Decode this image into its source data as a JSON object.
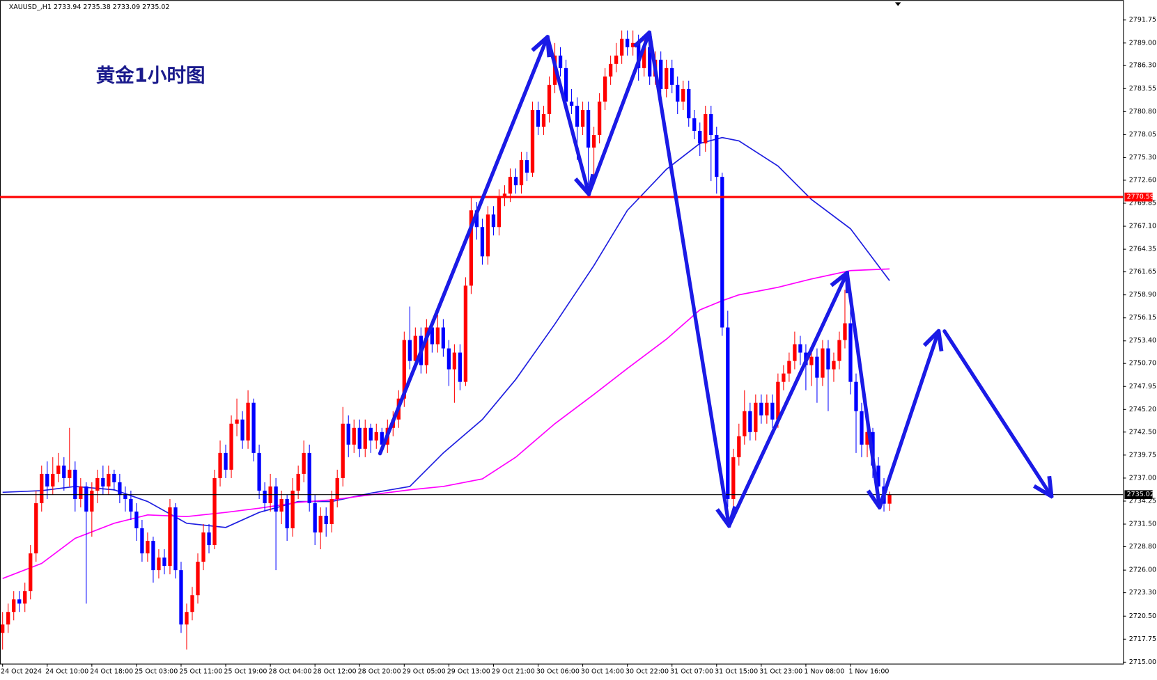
{
  "chart_data": {
    "type": "candlestick",
    "header": "XAUUSD_,H1  2733.94 2735.38 2733.09 2735.02",
    "annotation": "黄金1小时图",
    "up_color": "#ff0000",
    "down_color": "#0000ff",
    "categories": [
      "24 Oct 2024",
      null,
      null,
      null,
      null,
      null,
      null,
      null,
      "24 Oct 10:00",
      null,
      null,
      null,
      null,
      null,
      null,
      null,
      "24 Oct 18:00",
      null,
      null,
      null,
      null,
      null,
      null,
      null,
      "25 Oct 03:00",
      null,
      null,
      null,
      null,
      null,
      null,
      null,
      "25 Oct 11:00",
      null,
      null,
      null,
      null,
      null,
      null,
      null,
      "25 Oct 19:00",
      null,
      null,
      null,
      null,
      null,
      null,
      null,
      "28 Oct 04:00",
      null,
      null,
      null,
      null,
      null,
      null,
      null,
      "28 Oct 12:00",
      null,
      null,
      null,
      null,
      null,
      null,
      null,
      "28 Oct 20:00",
      null,
      null,
      null,
      null,
      null,
      null,
      null,
      "29 Oct 05:00",
      null,
      null,
      null,
      null,
      null,
      null,
      null,
      "29 Oct 13:00",
      null,
      null,
      null,
      null,
      null,
      null,
      null,
      "29 Oct 21:00",
      null,
      null,
      null,
      null,
      null,
      null,
      null,
      "30 Oct 06:00",
      null,
      null,
      null,
      null,
      null,
      null,
      null,
      "30 Oct 14:00",
      null,
      null,
      null,
      null,
      null,
      null,
      null,
      "30 Oct 22:00",
      null,
      null,
      null,
      null,
      null,
      null,
      null,
      "31 Oct 07:00",
      null,
      null,
      null,
      null,
      null,
      null,
      null,
      "31 Oct 15:00",
      null,
      null,
      null,
      null,
      null,
      null,
      null,
      "31 Oct 23:00",
      null,
      null,
      null,
      null,
      null,
      null,
      null,
      "1 Nov 08:00",
      null,
      null,
      null,
      null,
      null,
      null,
      null,
      "1 Nov 16:00",
      null,
      null,
      null,
      null,
      null,
      null,
      null
    ],
    "ohlc": [
      [
        2718.5,
        2721.0,
        2716.5,
        2719.5
      ],
      [
        2719.5,
        2722.0,
        2718.5,
        2721.0
      ],
      [
        2721.0,
        2723.5,
        2720.0,
        2722.5
      ],
      [
        2722.5,
        2723.5,
        2721.0,
        2722.0
      ],
      [
        2722.0,
        2724.5,
        2721.0,
        2723.5
      ],
      [
        2723.5,
        2729.0,
        2722.5,
        2728.0
      ],
      [
        2728.0,
        2735.5,
        2727.0,
        2734.0
      ],
      [
        2734.0,
        2738.5,
        2733.0,
        2737.5
      ],
      [
        2737.5,
        2739.0,
        2734.5,
        2736.0
      ],
      [
        2736.0,
        2739.5,
        2735.0,
        2737.5
      ],
      [
        2737.5,
        2740.0,
        2736.5,
        2738.5
      ],
      [
        2738.5,
        2739.5,
        2735.5,
        2737.0
      ],
      [
        2737.0,
        2743.0,
        2736.0,
        2738.0
      ],
      [
        2738.0,
        2739.0,
        2733.0,
        2734.5
      ],
      [
        2734.5,
        2737.0,
        2733.5,
        2736.0
      ],
      [
        2736.0,
        2736.5,
        2722.0,
        2733.0
      ],
      [
        2733.0,
        2736.5,
        2730.0,
        2735.5
      ],
      [
        2735.5,
        2738.0,
        2734.0,
        2737.0
      ],
      [
        2737.0,
        2738.5,
        2735.0,
        2736.0
      ],
      [
        2736.0,
        2738.5,
        2735.0,
        2737.5
      ],
      [
        2737.5,
        2738.0,
        2735.5,
        2736.5
      ],
      [
        2736.5,
        2737.5,
        2734.0,
        2735.0
      ],
      [
        2735.0,
        2736.0,
        2733.0,
        2734.5
      ],
      [
        2734.5,
        2735.5,
        2732.0,
        2733.0
      ],
      [
        2733.0,
        2734.0,
        2729.5,
        2731.0
      ],
      [
        2731.0,
        2732.0,
        2727.0,
        2728.0
      ],
      [
        2728.0,
        2730.5,
        2727.0,
        2729.5
      ],
      [
        2729.5,
        2730.0,
        2724.5,
        2726.0
      ],
      [
        2726.0,
        2728.5,
        2725.0,
        2727.5
      ],
      [
        2727.5,
        2728.5,
        2725.5,
        2726.5
      ],
      [
        2726.5,
        2734.5,
        2725.5,
        2733.5
      ],
      [
        2733.5,
        2734.0,
        2725.0,
        2726.0
      ],
      [
        2726.0,
        2727.0,
        2718.5,
        2719.5
      ],
      [
        2719.5,
        2722.0,
        2716.5,
        2721.0
      ],
      [
        2721.0,
        2724.0,
        2720.0,
        2723.0
      ],
      [
        2723.0,
        2728.0,
        2722.0,
        2727.0
      ],
      [
        2727.0,
        2731.5,
        2726.0,
        2730.5
      ],
      [
        2730.5,
        2731.5,
        2728.0,
        2729.0
      ],
      [
        2729.0,
        2738.0,
        2728.5,
        2737.0
      ],
      [
        2737.0,
        2741.5,
        2736.0,
        2740.0
      ],
      [
        2740.0,
        2741.0,
        2737.0,
        2738.0
      ],
      [
        2738.0,
        2744.5,
        2737.0,
        2743.5
      ],
      [
        2743.5,
        2746.5,
        2742.0,
        2744.0
      ],
      [
        2744.0,
        2745.0,
        2740.5,
        2741.5
      ],
      [
        2741.5,
        2747.5,
        2740.5,
        2746.0
      ],
      [
        2746.0,
        2746.5,
        2739.0,
        2740.0
      ],
      [
        2740.0,
        2741.0,
        2734.5,
        2735.5
      ],
      [
        2735.5,
        2736.5,
        2733.0,
        2734.0
      ],
      [
        2734.0,
        2737.5,
        2733.0,
        2736.0
      ],
      [
        2736.0,
        2737.0,
        2726.0,
        2733.0
      ],
      [
        2733.0,
        2735.5,
        2731.5,
        2734.5
      ],
      [
        2734.5,
        2735.0,
        2729.5,
        2731.0
      ],
      [
        2731.0,
        2737.0,
        2730.0,
        2735.5
      ],
      [
        2735.5,
        2738.5,
        2734.5,
        2737.5
      ],
      [
        2737.5,
        2741.5,
        2736.5,
        2740.0
      ],
      [
        2740.0,
        2741.0,
        2733.0,
        2734.0
      ],
      [
        2734.0,
        2735.0,
        2729.0,
        2730.5
      ],
      [
        2730.5,
        2733.5,
        2728.5,
        2732.5
      ],
      [
        2732.5,
        2733.5,
        2730.0,
        2731.5
      ],
      [
        2731.5,
        2735.5,
        2730.5,
        2734.5
      ],
      [
        2734.5,
        2738.0,
        2733.5,
        2737.0
      ],
      [
        2737.0,
        2745.5,
        2736.0,
        2743.5
      ],
      [
        2743.5,
        2744.5,
        2739.5,
        2741.0
      ],
      [
        2741.0,
        2744.0,
        2740.0,
        2743.0
      ],
      [
        2743.0,
        2744.0,
        2739.5,
        2740.5
      ],
      [
        2740.5,
        2744.0,
        2739.5,
        2743.0
      ],
      [
        2743.0,
        2743.5,
        2740.0,
        2741.5
      ],
      [
        2741.5,
        2743.5,
        2740.5,
        2742.5
      ],
      [
        2742.5,
        2743.0,
        2740.0,
        2741.0
      ],
      [
        2741.0,
        2744.0,
        2740.0,
        2743.0
      ],
      [
        2743.0,
        2745.0,
        2742.0,
        2744.0
      ],
      [
        2744.0,
        2747.5,
        2743.0,
        2746.5
      ],
      [
        2746.5,
        2754.5,
        2745.5,
        2753.5
      ],
      [
        2753.5,
        2757.5,
        2750.0,
        2751.0
      ],
      [
        2751.0,
        2755.0,
        2750.0,
        2754.0
      ],
      [
        2754.0,
        2755.0,
        2749.5,
        2750.5
      ],
      [
        2750.5,
        2756.0,
        2749.5,
        2755.0
      ],
      [
        2755.0,
        2756.0,
        2752.0,
        2753.0
      ],
      [
        2753.0,
        2756.5,
        2752.0,
        2755.0
      ],
      [
        2755.0,
        2756.0,
        2751.5,
        2752.5
      ],
      [
        2752.5,
        2753.5,
        2748.0,
        2750.0
      ],
      [
        2750.0,
        2753.0,
        2746.0,
        2752.0
      ],
      [
        2752.0,
        2753.0,
        2747.5,
        2748.5
      ],
      [
        2748.5,
        2761.0,
        2748.0,
        2760.0
      ],
      [
        2760.0,
        2770.5,
        2759.0,
        2769.0
      ],
      [
        2769.0,
        2770.0,
        2765.5,
        2767.0
      ],
      [
        2767.0,
        2768.0,
        2762.5,
        2763.5
      ],
      [
        2763.5,
        2769.5,
        2762.5,
        2768.5
      ],
      [
        2768.5,
        2769.5,
        2766.0,
        2767.0
      ],
      [
        2767.0,
        2771.5,
        2766.0,
        2770.5
      ],
      [
        2770.5,
        2772.0,
        2769.5,
        2771.0
      ],
      [
        2771.0,
        2774.0,
        2770.0,
        2773.0
      ],
      [
        2773.0,
        2774.0,
        2771.0,
        2772.0
      ],
      [
        2772.0,
        2776.0,
        2771.0,
        2775.0
      ],
      [
        2775.0,
        2776.0,
        2772.5,
        2773.5
      ],
      [
        2773.5,
        2782.0,
        2773.0,
        2781.0
      ],
      [
        2781.0,
        2782.0,
        2778.0,
        2779.0
      ],
      [
        2779.0,
        2781.5,
        2778.0,
        2780.5
      ],
      [
        2780.5,
        2785.0,
        2779.5,
        2784.0
      ],
      [
        2784.0,
        2789.0,
        2783.0,
        2787.5
      ],
      [
        2787.5,
        2788.5,
        2785.0,
        2786.0
      ],
      [
        2786.0,
        2787.0,
        2781.0,
        2782.0
      ],
      [
        2782.0,
        2783.5,
        2780.5,
        2781.5
      ],
      [
        2781.5,
        2782.5,
        2775.0,
        2779.0
      ],
      [
        2779.0,
        2782.0,
        2778.0,
        2781.0
      ],
      [
        2781.0,
        2782.0,
        2772.0,
        2776.5
      ],
      [
        2776.5,
        2779.0,
        2772.0,
        2778.0
      ],
      [
        2778.0,
        2783.0,
        2777.0,
        2782.0
      ],
      [
        2782.0,
        2786.0,
        2781.0,
        2785.0
      ],
      [
        2785.0,
        2787.5,
        2784.0,
        2786.5
      ],
      [
        2786.5,
        2789.0,
        2785.5,
        2787.5
      ],
      [
        2787.5,
        2790.5,
        2786.5,
        2789.5
      ],
      [
        2789.5,
        2790.5,
        2787.5,
        2788.5
      ],
      [
        2788.5,
        2790.5,
        2787.5,
        2789.0
      ],
      [
        2789.0,
        2790.0,
        2784.5,
        2786.0
      ],
      [
        2786.0,
        2789.5,
        2785.0,
        2788.5
      ],
      [
        2788.5,
        2789.5,
        2784.0,
        2785.0
      ],
      [
        2785.0,
        2788.0,
        2784.0,
        2787.0
      ],
      [
        2787.0,
        2788.0,
        2782.0,
        2783.5
      ],
      [
        2783.5,
        2787.0,
        2782.5,
        2786.0
      ],
      [
        2786.0,
        2787.0,
        2783.0,
        2784.0
      ],
      [
        2784.0,
        2785.0,
        2780.5,
        2782.0
      ],
      [
        2782.0,
        2784.5,
        2781.0,
        2783.5
      ],
      [
        2783.5,
        2784.5,
        2779.0,
        2780.0
      ],
      [
        2780.0,
        2781.0,
        2777.5,
        2778.5
      ],
      [
        2778.5,
        2779.5,
        2775.5,
        2777.0
      ],
      [
        2777.0,
        2781.5,
        2776.0,
        2780.5
      ],
      [
        2780.5,
        2781.5,
        2772.5,
        2778.0
      ],
      [
        2778.0,
        2779.0,
        2771.0,
        2773.0
      ],
      [
        2773.0,
        2773.5,
        2754.0,
        2755.0
      ],
      [
        2755.0,
        2757.0,
        2733.5,
        2734.5
      ],
      [
        2734.5,
        2740.5,
        2733.0,
        2739.5
      ],
      [
        2739.5,
        2743.5,
        2738.5,
        2742.0
      ],
      [
        2742.0,
        2747.5,
        2741.0,
        2745.0
      ],
      [
        2745.0,
        2746.0,
        2741.5,
        2742.5
      ],
      [
        2742.5,
        2747.0,
        2741.5,
        2746.0
      ],
      [
        2746.0,
        2747.0,
        2743.5,
        2744.5
      ],
      [
        2744.5,
        2747.0,
        2743.5,
        2746.0
      ],
      [
        2746.0,
        2747.0,
        2743.0,
        2744.0
      ],
      [
        2744.0,
        2749.5,
        2743.0,
        2748.5
      ],
      [
        2748.5,
        2750.5,
        2747.5,
        2749.5
      ],
      [
        2749.5,
        2752.0,
        2748.5,
        2751.0
      ],
      [
        2751.0,
        2754.5,
        2750.0,
        2753.0
      ],
      [
        2753.0,
        2754.0,
        2750.5,
        2752.0
      ],
      [
        2752.0,
        2753.0,
        2747.5,
        2750.5
      ],
      [
        2750.5,
        2752.5,
        2748.0,
        2751.5
      ],
      [
        2751.5,
        2752.5,
        2746.0,
        2749.0
      ],
      [
        2749.0,
        2753.5,
        2748.0,
        2752.5
      ],
      [
        2752.5,
        2753.5,
        2745.0,
        2750.0
      ],
      [
        2750.0,
        2752.0,
        2748.5,
        2751.0
      ],
      [
        2751.0,
        2754.5,
        2750.0,
        2753.5
      ],
      [
        2753.5,
        2759.5,
        2752.5,
        2755.5
      ],
      [
        2755.5,
        2758.0,
        2747.0,
        2748.5
      ],
      [
        2748.5,
        2749.5,
        2740.0,
        2745.0
      ],
      [
        2745.0,
        2746.0,
        2739.5,
        2741.0
      ],
      [
        2741.0,
        2743.5,
        2739.5,
        2742.5
      ],
      [
        2742.5,
        2743.0,
        2737.0,
        2738.5
      ],
      [
        2738.5,
        2739.5,
        2734.0,
        2736.0
      ],
      [
        2736.0,
        2737.0,
        2733.0,
        2733.94
      ],
      [
        2733.94,
        2735.38,
        2733.09,
        2735.02
      ]
    ],
    "lines": [
      {
        "color": "#1f1fe0",
        "x": [
          0,
          7,
          13,
          20,
          26,
          33,
          40,
          46,
          53,
          59,
          66,
          73,
          79,
          86,
          92,
          99,
          106,
          112,
          119,
          125,
          129,
          132,
          139,
          145,
          152,
          159
        ],
        "values": [
          2735.3,
          2735.5,
          2736.0,
          2735.6,
          2734.2,
          2731.6,
          2731.1,
          2732.9,
          2734.2,
          2734.2,
          2735.2,
          2736.0,
          2740.0,
          2744.0,
          2748.8,
          2755.4,
          2762.4,
          2769.0,
          2773.9,
          2777.0,
          2777.7,
          2777.3,
          2774.3,
          2770.3,
          2766.8,
          2760.6
        ]
      },
      {
        "color": "#ff00ff",
        "x": [
          0,
          7,
          13,
          20,
          26,
          33,
          40,
          46,
          53,
          59,
          66,
          73,
          79,
          86,
          92,
          99,
          106,
          112,
          119,
          125,
          129,
          132,
          139,
          145,
          152,
          159
        ],
        "values": [
          2725.0,
          2726.8,
          2729.8,
          2731.6,
          2732.6,
          2732.4,
          2732.9,
          2733.4,
          2734.1,
          2734.4,
          2735.0,
          2735.6,
          2736.0,
          2736.9,
          2739.5,
          2743.5,
          2747.0,
          2750.1,
          2753.6,
          2757.1,
          2758.2,
          2758.9,
          2759.8,
          2760.8,
          2761.8,
          2762.0
        ]
      }
    ],
    "hlines": [
      {
        "value": 2770.59,
        "color": "#ff0000"
      },
      {
        "value": 2735.02,
        "color": "#000000"
      }
    ],
    "ylim": [
      2714.82,
      2793.95
    ],
    "yticks": [
      {
        "value": 2715,
        "label": "2715.00"
      },
      2717.75,
      {
        "value": 2720.5,
        "label": "2720.50"
      },
      {
        "value": 2723.3,
        "label": "2723.30"
      },
      {
        "value": 2726,
        "label": "2726.00"
      },
      {
        "value": 2728.8,
        "label": "2728.80"
      },
      {
        "value": 2731.5,
        "label": "2731.50"
      },
      2734.25,
      {
        "value": 2737,
        "label": "2737.00"
      },
      2739.75,
      {
        "value": 2742.5,
        "label": "2742.50"
      },
      {
        "value": 2745.2,
        "label": "2745.20"
      },
      2747.95,
      {
        "value": 2750.7,
        "label": "2750.70"
      },
      {
        "value": 2753.4,
        "label": "2753.40"
      },
      2756.15,
      {
        "value": 2758.9,
        "label": "2758.90"
      },
      2761.65,
      2764.35,
      {
        "value": 2767.1,
        "label": "2767.10"
      },
      2769.85,
      {
        "value": 2772.6,
        "label": "2772.60"
      },
      {
        "value": 2775.3,
        "label": "2775.30"
      },
      2778.05,
      {
        "value": 2780.8,
        "label": "2780.80"
      },
      2783.55,
      {
        "value": 2786.3,
        "label": "2786.30"
      },
      {
        "value": 2789,
        "label": "2789.00"
      },
      2791.75
    ]
  }
}
